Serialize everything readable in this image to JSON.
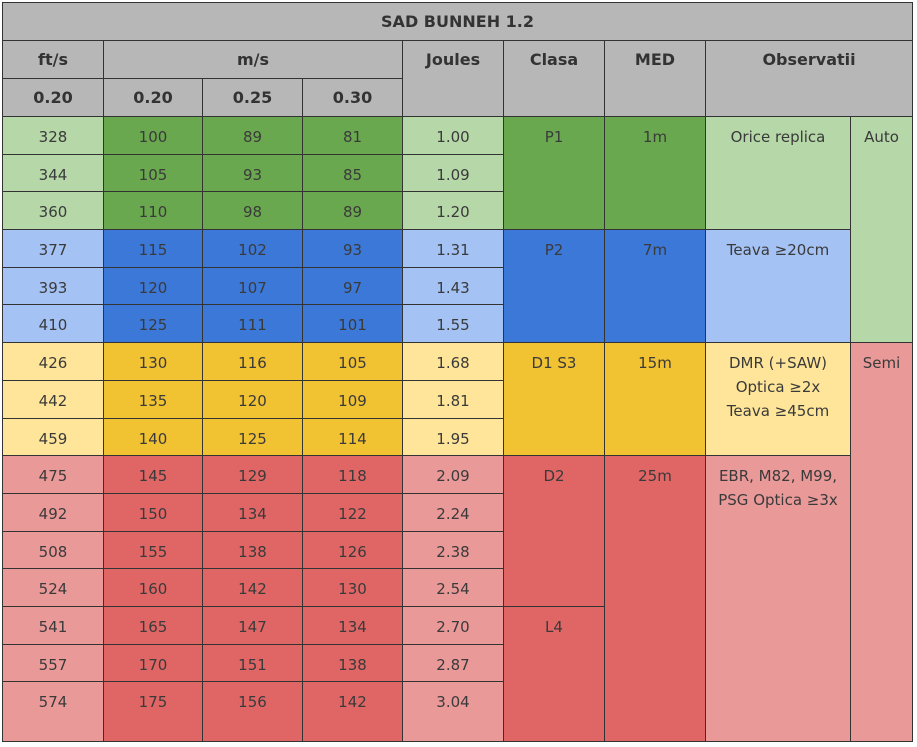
{
  "title": "SAD BUNNEH 1.2",
  "headers": {
    "fts": "ft/s",
    "ms": "m/s",
    "joules": "Joules",
    "clasa": "Clasa",
    "med": "MED",
    "observatii": "Observatii"
  },
  "subheaders": {
    "fts": "0.20",
    "ms": [
      "0.20",
      "0.25",
      "0.30"
    ]
  },
  "colors": {
    "header": "#b7b7b7",
    "green": [
      "#b6d7a8",
      "#6aa84f"
    ],
    "blue": [
      "#a4c2f4",
      "#3c78d8"
    ],
    "yellow": [
      "#ffe599",
      "#f1c232"
    ],
    "red": [
      "#ea9999",
      "#e06666"
    ]
  },
  "rows": [
    {
      "fts": "328",
      "ms": [
        "100",
        "89",
        "81"
      ],
      "joules": "1.00",
      "tier": "g"
    },
    {
      "fts": "344",
      "ms": [
        "105",
        "93",
        "85"
      ],
      "joules": "1.09",
      "tier": "g"
    },
    {
      "fts": "360",
      "ms": [
        "110",
        "98",
        "89"
      ],
      "joules": "1.20",
      "tier": "g"
    },
    {
      "fts": "377",
      "ms": [
        "115",
        "102",
        "93"
      ],
      "joules": "1.31",
      "tier": "b"
    },
    {
      "fts": "393",
      "ms": [
        "120",
        "107",
        "97"
      ],
      "joules": "1.43",
      "tier": "b"
    },
    {
      "fts": "410",
      "ms": [
        "125",
        "111",
        "101"
      ],
      "joules": "1.55",
      "tier": "b"
    },
    {
      "fts": "426",
      "ms": [
        "130",
        "116",
        "105"
      ],
      "joules": "1.68",
      "tier": "y"
    },
    {
      "fts": "442",
      "ms": [
        "135",
        "120",
        "109"
      ],
      "joules": "1.81",
      "tier": "y"
    },
    {
      "fts": "459",
      "ms": [
        "140",
        "125",
        "114"
      ],
      "joules": "1.95",
      "tier": "y"
    },
    {
      "fts": "475",
      "ms": [
        "145",
        "129",
        "118"
      ],
      "joules": "2.09",
      "tier": "r"
    },
    {
      "fts": "492",
      "ms": [
        "150",
        "134",
        "122"
      ],
      "joules": "2.24",
      "tier": "r"
    },
    {
      "fts": "508",
      "ms": [
        "155",
        "138",
        "126"
      ],
      "joules": "2.38",
      "tier": "r"
    },
    {
      "fts": "524",
      "ms": [
        "160",
        "142",
        "130"
      ],
      "joules": "2.54",
      "tier": "r"
    },
    {
      "fts": "541",
      "ms": [
        "165",
        "147",
        "134"
      ],
      "joules": "2.70",
      "tier": "r"
    },
    {
      "fts": "557",
      "ms": [
        "170",
        "151",
        "138"
      ],
      "joules": "2.87",
      "tier": "r"
    },
    {
      "fts": "574",
      "ms": [
        "175",
        "156",
        "142"
      ],
      "joules": "3.04",
      "tier": "r"
    }
  ],
  "clasa": [
    {
      "label": "P1",
      "start": 0,
      "span": 3,
      "tier": "g"
    },
    {
      "label": "P2",
      "start": 3,
      "span": 3,
      "tier": "b"
    },
    {
      "label": "D1 S3",
      "start": 6,
      "span": 3,
      "tier": "y"
    },
    {
      "label": "D2",
      "start": 9,
      "span": 4,
      "tier": "r"
    },
    {
      "label": "L4",
      "start": 13,
      "span": 3,
      "tier": "r"
    }
  ],
  "med": [
    {
      "label": "1m",
      "start": 0,
      "span": 3,
      "tier": "g"
    },
    {
      "label": "7m",
      "start": 3,
      "span": 3,
      "tier": "b"
    },
    {
      "label": "15m",
      "start": 6,
      "span": 3,
      "tier": "y"
    },
    {
      "label": "25m",
      "start": 9,
      "span": 7,
      "tier": "r"
    }
  ],
  "observatii": [
    {
      "lines": [
        "Orice replica"
      ],
      "start": 0,
      "span": 3,
      "tier": "g"
    },
    {
      "lines": [
        "Teava ≥20cm"
      ],
      "start": 3,
      "span": 3,
      "tier": "b"
    },
    {
      "lines": [
        "DMR (+SAW)",
        "Optica ≥2x",
        "Teava ≥45cm"
      ],
      "start": 6,
      "span": 3,
      "tier": "y"
    },
    {
      "lines": [
        "EBR, M82, M99,",
        "PSG Optica ≥3x"
      ],
      "start": 9,
      "span": 7,
      "tier": "r"
    }
  ],
  "mode": [
    {
      "label": "Auto",
      "start": 0,
      "span": 6,
      "tier": "g"
    },
    {
      "label": "Semi",
      "start": 6,
      "span": 10,
      "tier": "r"
    }
  ]
}
